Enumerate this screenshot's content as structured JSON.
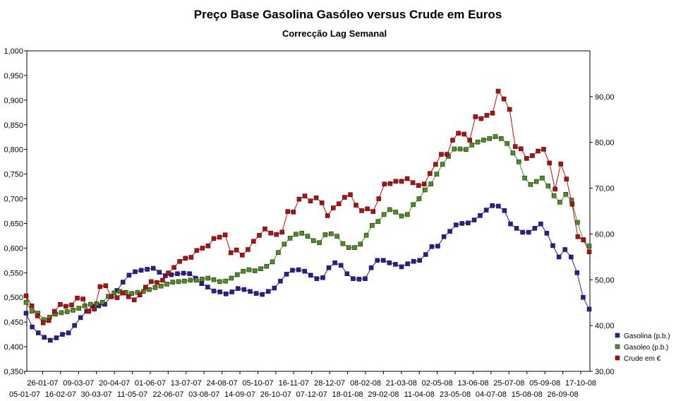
{
  "chart_data": {
    "type": "line",
    "title": "Preço Base Gasolina Gasóleo versus Crude em Euros",
    "subtitle": "Correcção Lag Semanal",
    "x_tick_labels": [
      "05-01-07",
      "26-01-07",
      "16-02-07",
      "09-03-07",
      "30-03-07",
      "20-04-07",
      "11-05-07",
      "01-06-07",
      "22-06-07",
      "13-07-07",
      "03-08-07",
      "24-08-07",
      "14-09-07",
      "05-10-07",
      "26-10-07",
      "16-11-07",
      "07-12-07",
      "28-12-07",
      "18-01-08",
      "08-02-08",
      "29-02-08",
      "21-03-08",
      "11-04-08",
      "02-05-08",
      "23-05-08",
      "13-06-08",
      "04-07-08",
      "25-07-08",
      "15-08-08",
      "05-09-08",
      "26-09-08",
      "17-10-08"
    ],
    "y_left": {
      "min": 0.35,
      "max": 1.0,
      "step": 0.05,
      "labels": [
        "0,350",
        "0,400",
        "0,450",
        "0,500",
        "0,550",
        "0,600",
        "0,650",
        "0,700",
        "0,750",
        "0,800",
        "0,850",
        "0,900",
        "0,950",
        "1,000"
      ]
    },
    "y_right": {
      "min": 30,
      "max": 100,
      "step": 10,
      "labels": [
        "30,00",
        "40,00",
        "50,00",
        "60,00",
        "70,00",
        "80,00",
        "90,00"
      ]
    },
    "legend_position": "right",
    "series": [
      {
        "name": "Gasolina (p.b.)",
        "axis": "left",
        "color": "#2b1a9c",
        "values": [
          0.468,
          0.44,
          0.428,
          0.419,
          0.413,
          0.418,
          0.425,
          0.428,
          0.443,
          0.459,
          0.472,
          0.482,
          0.483,
          0.486,
          0.502,
          0.514,
          0.531,
          0.545,
          0.552,
          0.555,
          0.557,
          0.559,
          0.551,
          0.544,
          0.546,
          0.548,
          0.549,
          0.548,
          0.539,
          0.528,
          0.521,
          0.513,
          0.511,
          0.507,
          0.511,
          0.518,
          0.516,
          0.512,
          0.508,
          0.506,
          0.512,
          0.519,
          0.533,
          0.547,
          0.555,
          0.556,
          0.553,
          0.545,
          0.538,
          0.54,
          0.56,
          0.57,
          0.565,
          0.548,
          0.538,
          0.537,
          0.538,
          0.56,
          0.575,
          0.575,
          0.57,
          0.567,
          0.562,
          0.568,
          0.573,
          0.575,
          0.587,
          0.603,
          0.604,
          0.623,
          0.634,
          0.647,
          0.65,
          0.651,
          0.657,
          0.666,
          0.677,
          0.686,
          0.685,
          0.676,
          0.649,
          0.64,
          0.632,
          0.632,
          0.64,
          0.649,
          0.63,
          0.605,
          0.582,
          0.597,
          0.582,
          0.55,
          0.5,
          0.476
        ]
      },
      {
        "name": "Gasoleo (p.b.)",
        "axis": "left",
        "color": "#4e8f1e",
        "values": [
          0.49,
          0.472,
          0.468,
          0.455,
          0.46,
          0.466,
          0.469,
          0.471,
          0.474,
          0.478,
          0.483,
          0.486,
          0.487,
          0.49,
          0.502,
          0.509,
          0.512,
          0.51,
          0.508,
          0.51,
          0.512,
          0.516,
          0.52,
          0.523,
          0.527,
          0.531,
          0.532,
          0.533,
          0.535,
          0.535,
          0.537,
          0.539,
          0.536,
          0.532,
          0.533,
          0.539,
          0.546,
          0.553,
          0.556,
          0.554,
          0.558,
          0.563,
          0.572,
          0.591,
          0.608,
          0.62,
          0.628,
          0.63,
          0.624,
          0.615,
          0.611,
          0.627,
          0.629,
          0.624,
          0.609,
          0.601,
          0.601,
          0.608,
          0.626,
          0.646,
          0.654,
          0.668,
          0.678,
          0.673,
          0.665,
          0.668,
          0.688,
          0.7,
          0.718,
          0.73,
          0.75,
          0.77,
          0.786,
          0.801,
          0.801,
          0.8,
          0.809,
          0.815,
          0.819,
          0.822,
          0.826,
          0.822,
          0.812,
          0.793,
          0.775,
          0.742,
          0.729,
          0.735,
          0.742,
          0.726,
          0.706,
          0.693,
          0.709,
          0.697,
          0.652,
          0.617,
          0.604
        ]
      },
      {
        "name": "Crude em €",
        "axis": "right",
        "color": "#b80d0d",
        "values": [
          46.5,
          44.3,
          42.1,
          40.6,
          41.1,
          43.1,
          44.6,
          44.2,
          44.5,
          46.0,
          45.8,
          43.1,
          43.6,
          48.5,
          48.7,
          46.3,
          46.1,
          47.1,
          46.3,
          45.6,
          46.7,
          48.4,
          49.6,
          49.4,
          49.9,
          51.5,
          52.7,
          54.0,
          54.7,
          54.9,
          56.4,
          56.9,
          57.4,
          59.0,
          59.3,
          59.8,
          55.9,
          56.5,
          55.4,
          56.6,
          58.4,
          59.7,
          61.1,
          60.2,
          59.9,
          60.4,
          64.9,
          64.8,
          67.6,
          68.3,
          67.2,
          67.9,
          66.8,
          64.0,
          65.7,
          66.6,
          68.0,
          68.6,
          66.3,
          65.1,
          65.5,
          64.9,
          67.7,
          70.9,
          71.0,
          71.5,
          71.5,
          72.1,
          71.2,
          70.6,
          70.9,
          73.2,
          75.2,
          77.4,
          77.4,
          80.5,
          82.0,
          81.8,
          80.5,
          85.6,
          85.2,
          85.9,
          86.4,
          91.2,
          89.5,
          87.2,
          79.1,
          78.6,
          76.5,
          77.1,
          78.1,
          78.5,
          75.5,
          69.8,
          75.3,
          72.0,
          66.5,
          59.4,
          58.7,
          56.1
        ]
      }
    ]
  }
}
